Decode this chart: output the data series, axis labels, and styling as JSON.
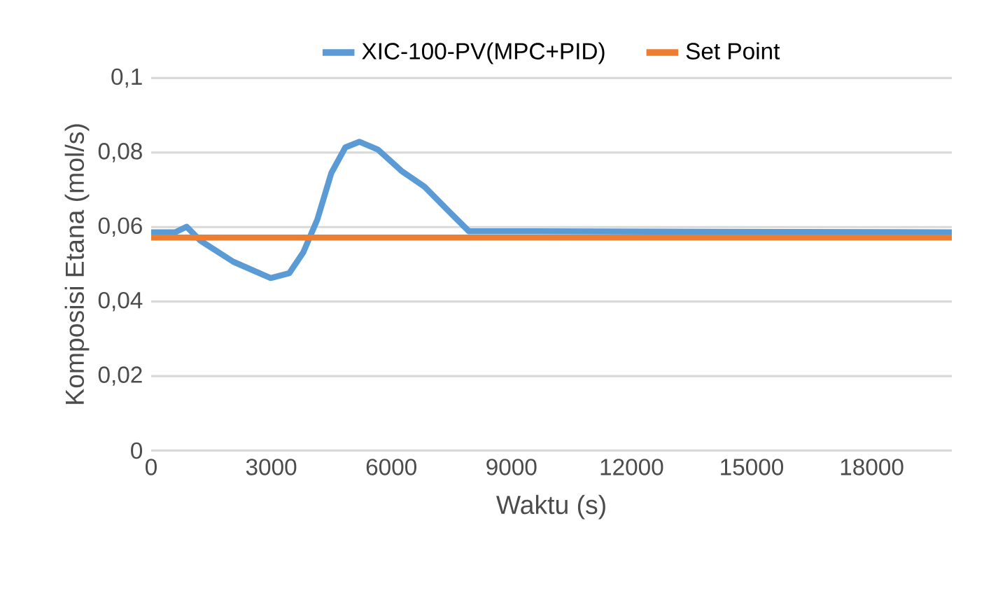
{
  "chart_data": {
    "type": "line",
    "xlabel": "Waktu (s)",
    "ylabel": "Komposisi Etana (mol/s)",
    "xlim": [
      0,
      20000
    ],
    "xticks": [
      0,
      3000,
      6000,
      9000,
      12000,
      15000,
      18000
    ],
    "ylim": [
      0,
      0.1
    ],
    "yticks": [
      {
        "value": 0,
        "label": "0"
      },
      {
        "value": 0.02,
        "label": "0,02"
      },
      {
        "value": 0.04,
        "label": "0,04"
      },
      {
        "value": 0.06,
        "label": "0,06"
      },
      {
        "value": 0.08,
        "label": "0,08"
      },
      {
        "value": 0.1,
        "label": "0,1"
      }
    ],
    "grid": "y",
    "legend": "top",
    "marker": "none",
    "series": [
      {
        "name": "XIC-100-PV(MPC+PID)",
        "color": "#5b9bd5",
        "x": [
          0,
          600,
          885,
          1235,
          2050,
          2985,
          3450,
          3800,
          4150,
          4500,
          4850,
          5200,
          5665,
          6250,
          6830,
          7410,
          7935,
          20000
        ],
        "values": [
          0.0586,
          0.0586,
          0.0601,
          0.0563,
          0.0507,
          0.0463,
          0.0476,
          0.0532,
          0.062,
          0.0745,
          0.0814,
          0.0829,
          0.0808,
          0.0751,
          0.0708,
          0.0645,
          0.0589,
          0.0586
        ]
      },
      {
        "name": "Set Point",
        "color": "#ed7d31",
        "x": [
          0,
          20000
        ],
        "values": [
          0.0572,
          0.0572
        ]
      }
    ]
  }
}
